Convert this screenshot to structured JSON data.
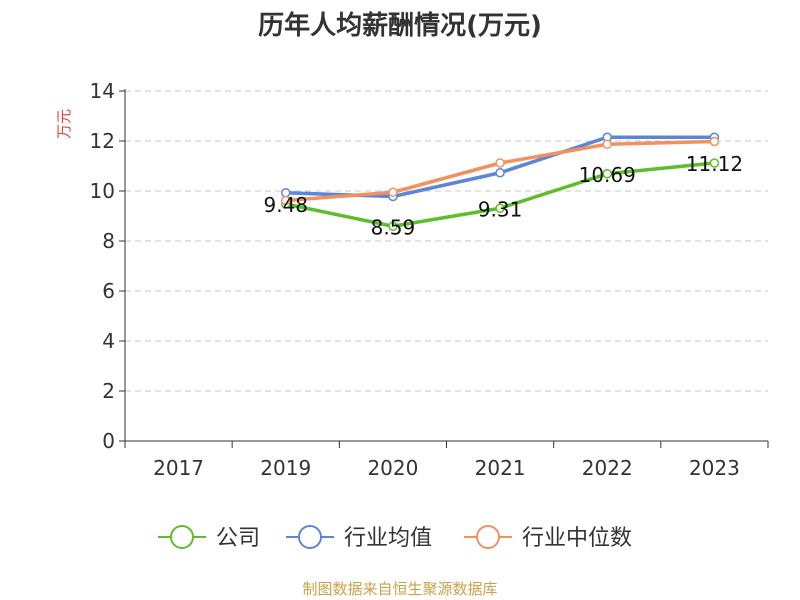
{
  "chart_data": {
    "type": "line",
    "title": "历年人均薪酬情况(万元)",
    "ylabel": "万元",
    "xlabel": "",
    "categories": [
      "2017",
      "2019",
      "2020",
      "2021",
      "2022",
      "2023"
    ],
    "ylim": [
      0,
      14
    ],
    "yticks": [
      0,
      2,
      4,
      6,
      8,
      10,
      12,
      14
    ],
    "grid": true,
    "legend_position": "bottom",
    "series": [
      {
        "name": "公司",
        "color": "#5cbf2a",
        "values": [
          null,
          9.48,
          8.59,
          9.31,
          10.69,
          11.12
        ]
      },
      {
        "name": "行业均值",
        "color": "#5b86d8",
        "values": [
          null,
          9.93,
          9.78,
          10.73,
          12.15,
          12.15
        ]
      },
      {
        "name": "行业中位数",
        "color": "#f3915e",
        "values": [
          null,
          9.62,
          9.95,
          11.12,
          11.87,
          11.98
        ]
      }
    ],
    "data_labels": [
      {
        "series": 0,
        "index": 1,
        "text": "9.48"
      },
      {
        "series": 0,
        "index": 2,
        "text": "8.59"
      },
      {
        "series": 0,
        "index": 3,
        "text": "9.31"
      },
      {
        "series": 0,
        "index": 4,
        "text": "10.69"
      },
      {
        "series": 0,
        "index": 5,
        "text": "11.12"
      }
    ]
  },
  "source": "制图数据来自恒生聚源数据库"
}
